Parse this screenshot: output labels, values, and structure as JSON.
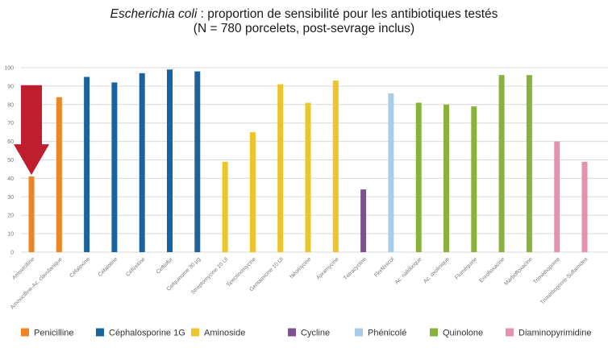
{
  "chart_data": {
    "type": "bar",
    "title": "Escherichia coli : proportion de sensibilité pour les antibiotiques testés",
    "title_italic_part": "Escherichia coli",
    "title_rest": " : proportion de sensibilité pour les antibiotiques testés",
    "subtitle": "(N = 780 porcelets, post-sevrage inclus)",
    "xlabel": "",
    "ylabel": "",
    "ylim": [
      0,
      100
    ],
    "yticks": [
      0,
      10,
      20,
      30,
      40,
      50,
      60,
      70,
      80,
      90,
      100
    ],
    "grid": true,
    "legend_position": "bottom",
    "categories": [
      "Amoxicilline",
      "Amoxicilline-Ac. clavulanique",
      "Céfalexine",
      "Céfalotine",
      "Céfoxitine",
      "Ceftiofur",
      "Cefquinome 30 µg",
      "Streptomycine 10 UI",
      "Spectinomycine",
      "Gentamicine 10 UI",
      "Néomycine",
      "Apramycine",
      "Tétracycline",
      "Florfénicol",
      "Ac. nalidixique",
      "Ac. oxolinique",
      "Fluméquine",
      "Enrofloxacine",
      "Marbofloxacine",
      "Triméthoprime",
      "Triméthoprime-Sulfamides"
    ],
    "values": [
      41,
      84,
      95,
      92,
      97,
      99,
      98,
      49,
      65,
      91,
      81,
      93,
      34,
      86,
      81,
      80,
      79,
      96,
      96,
      60,
      49
    ],
    "groups": [
      0,
      0,
      1,
      1,
      1,
      1,
      1,
      2,
      2,
      2,
      2,
      2,
      3,
      4,
      5,
      5,
      5,
      5,
      5,
      6,
      6
    ],
    "legend": [
      {
        "name": "Penicilline",
        "color": "#EE8424"
      },
      {
        "name": "Céphalosporine 1G",
        "color": "#1764A0"
      },
      {
        "name": "Aminoside",
        "color": "#EDC52B"
      },
      {
        "name": "Cycline",
        "color": "#7E4F93"
      },
      {
        "name": "Phénicolé",
        "color": "#A7CDEB"
      },
      {
        "name": "Quinolone",
        "color": "#86B23D"
      },
      {
        "name": "Diaminopyrimidine",
        "color": "#E792AD"
      }
    ],
    "annotation": {
      "type": "arrow-down",
      "target_category": "Amoxicilline",
      "color": "#BE1E2D"
    }
  }
}
